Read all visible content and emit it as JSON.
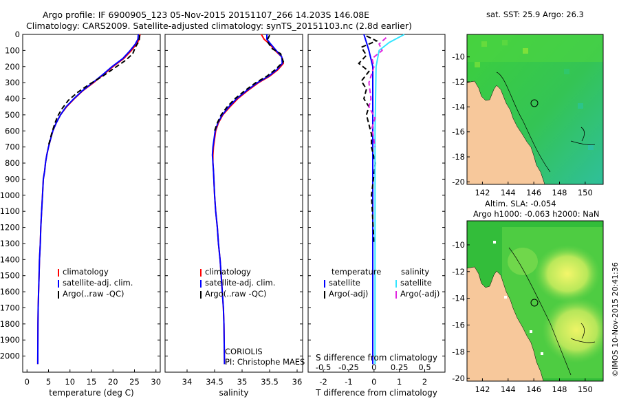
{
  "header": {
    "line1": "Argo profile: IF 6900905_123 05-Nov-2015 20151107_266 14.203S 146.08E",
    "line2": "Climatology: CARS2009. Satellite-adjusted climatology: synTS_20151103.nc (2.8d earlier)"
  },
  "map_top": {
    "title": "sat. SST: 25.9 Argo: 26.3",
    "xticks": [
      "142",
      "144",
      "146",
      "148",
      "150"
    ],
    "yticks": [
      "-10",
      "-12",
      "-14",
      "-16",
      "-18",
      "-20"
    ],
    "xlim": [
      140.8,
      151.4
    ],
    "ylim": [
      -20.2,
      -8.2
    ],
    "marker": {
      "lon": 146.08,
      "lat": -14.203
    }
  },
  "map_bottom": {
    "title1": "Altim. SLA: -0.054",
    "title2": "Argo h1000: -0.063 h2000: NaN",
    "xticks": [
      "142",
      "144",
      "146",
      "148",
      "150"
    ],
    "yticks": [
      "-10",
      "-12",
      "-14",
      "-16",
      "-18",
      "-20"
    ],
    "xlim": [
      140.8,
      151.4
    ],
    "ylim": [
      -20.2,
      -8.2
    ],
    "marker": {
      "lon": 146.08,
      "lat": -14.203
    }
  },
  "watermark": "©IMOS 10-Nov-2015 20:41:36",
  "colors": {
    "climatology": "#ff0000",
    "satellite": "#0000ff",
    "argo": "#000000",
    "sal_satellite": "#33e5ff",
    "sal_argo": "#e026e0",
    "land": "#f7c89b",
    "ocean": "#39c039"
  },
  "chart_data": [
    {
      "type": "line",
      "xlabel": "temperature (deg C)",
      "ylim": [
        2100,
        0
      ],
      "xlim": [
        -1,
        31
      ],
      "xticks": [
        "0",
        "5",
        "10",
        "15",
        "20",
        "25",
        "30"
      ],
      "yticks": [
        "0",
        "100",
        "200",
        "300",
        "400",
        "500",
        "600",
        "700",
        "800",
        "900",
        "1000",
        "1100",
        "1200",
        "1300",
        "1400",
        "1500",
        "1600",
        "1700",
        "1800",
        "1900",
        "2000"
      ],
      "legend": [
        "climatology",
        "satellite-adj. clim.",
        "Argo(..raw -QC)"
      ],
      "series": [
        {
          "name": "climatology",
          "x": [
            26.3,
            26.1,
            25.5,
            24.3,
            22.5,
            20,
            17.8,
            15.5,
            13,
            11,
            9.2,
            7.8,
            6.8,
            6,
            5.5,
            5,
            4.6,
            4.3,
            4.1,
            3.8,
            3.6,
            3.4,
            3.2,
            3.1,
            2.9,
            2.8,
            2.7,
            2.6,
            2.55,
            2.5
          ],
          "y": [
            0,
            30,
            60,
            100,
            150,
            200,
            250,
            300,
            350,
            400,
            450,
            500,
            550,
            600,
            650,
            700,
            750,
            800,
            850,
            900,
            1000,
            1100,
            1200,
            1300,
            1400,
            1500,
            1600,
            1700,
            1800,
            2050
          ]
        },
        {
          "name": "satellite-adj. clim.",
          "x": [
            25.9,
            25.8,
            25.2,
            24,
            22.3,
            19.8,
            17.6,
            15.3,
            12.9,
            10.9,
            9.1,
            7.8,
            6.8,
            6,
            5.5,
            5,
            4.6,
            4.3,
            4.1,
            3.8,
            3.6,
            3.4,
            3.2,
            3.1,
            2.9,
            2.8,
            2.7,
            2.6,
            2.55,
            2.5
          ],
          "y": [
            0,
            30,
            60,
            100,
            150,
            200,
            250,
            300,
            350,
            400,
            450,
            500,
            550,
            600,
            650,
            700,
            750,
            800,
            850,
            900,
            1000,
            1100,
            1200,
            1300,
            1400,
            1500,
            1600,
            1700,
            1800,
            2050
          ]
        },
        {
          "name": "Argo(..raw -QC)",
          "x": [
            26.2,
            26.1,
            25.2,
            24.6,
            23,
            20.3,
            17.6,
            14.5,
            11.8,
            9.6,
            8.2,
            7.1,
            6.4,
            5.8,
            5.3,
            4.9
          ],
          "y": [
            5,
            40,
            80,
            120,
            160,
            210,
            260,
            310,
            360,
            410,
            460,
            510,
            560,
            610,
            660,
            700
          ]
        }
      ]
    },
    {
      "type": "line",
      "xlabel": "salinity",
      "ylim": [
        2100,
        0
      ],
      "xlim": [
        33.6,
        36.1
      ],
      "xticks": [
        "34",
        "34.5",
        "35",
        "35.5",
        "36"
      ],
      "legend": [
        "climatology",
        "satellite-adj. clim.",
        "Argo(..raw -QC)"
      ],
      "annotation": [
        "CORIOLIS",
        "PI: Christophe MAES"
      ],
      "series": [
        {
          "name": "climatology",
          "x": [
            35.35,
            35.4,
            35.5,
            35.6,
            35.72,
            35.75,
            35.65,
            35.5,
            35.3,
            35.1,
            34.92,
            34.78,
            34.65,
            34.57,
            34.52,
            34.5,
            34.48,
            34.47,
            34.47,
            34.48,
            34.5,
            34.52,
            34.55,
            34.57,
            34.6,
            34.62,
            34.64,
            34.66,
            34.67,
            34.68
          ],
          "y": [
            0,
            30,
            60,
            100,
            140,
            180,
            220,
            260,
            300,
            350,
            400,
            450,
            500,
            550,
            600,
            650,
            700,
            750,
            800,
            850,
            1000,
            1100,
            1200,
            1300,
            1400,
            1500,
            1600,
            1700,
            1800,
            2050
          ]
        },
        {
          "name": "satellite-adj. clim.",
          "x": [
            35.45,
            35.45,
            35.52,
            35.62,
            35.72,
            35.73,
            35.63,
            35.48,
            35.28,
            35.08,
            34.9,
            34.76,
            34.64,
            34.56,
            34.51,
            34.49,
            34.47,
            34.46,
            34.47,
            34.48,
            34.5,
            34.52,
            34.55,
            34.57,
            34.6,
            34.62,
            34.64,
            34.66,
            34.67,
            34.68
          ],
          "y": [
            0,
            30,
            60,
            100,
            140,
            180,
            220,
            260,
            300,
            350,
            400,
            450,
            500,
            550,
            600,
            650,
            700,
            750,
            800,
            850,
            1000,
            1100,
            1200,
            1300,
            1400,
            1500,
            1600,
            1700,
            1800,
            2050
          ]
        },
        {
          "name": "Argo(..raw -QC)",
          "x": [
            35.5,
            35.45,
            35.55,
            35.7,
            35.75,
            35.6,
            35.45,
            35.25,
            35.05,
            34.87,
            34.73,
            34.62,
            34.55,
            34.5
          ],
          "y": [
            5,
            40,
            90,
            120,
            170,
            220,
            260,
            300,
            350,
            400,
            450,
            500,
            550,
            600
          ]
        }
      ]
    },
    {
      "type": "line",
      "xlabel_bottom": "T difference from climatology",
      "xlabel_top": "S difference from climatology",
      "ylim": [
        2100,
        0
      ],
      "xlim": [
        -2.6,
        2.8
      ],
      "xticks": [
        "-2",
        "-1",
        "0",
        "1",
        "2"
      ],
      "xticks_top": [
        "-0.5",
        "-0.25",
        "0",
        "0.25",
        "0.5"
      ],
      "legend_headers": [
        "temperature",
        "salinity"
      ],
      "legend": [
        "satellite",
        "Argo(-adj)",
        "satellite",
        "Argo(-adj)"
      ],
      "series": [
        {
          "name": "satellite",
          "x": [
            -0.4,
            -0.3,
            -0.2,
            -0.05,
            -0.05,
            -0.05,
            -0.05,
            -0.05
          ],
          "y": [
            0,
            50,
            100,
            200,
            600,
            1000,
            1500,
            2050
          ]
        },
        {
          "name": "Argo(-adj)",
          "x": [
            -0.3,
            0.1,
            -0.5,
            -0.3,
            -0.6,
            -0.2,
            -0.5,
            -0.3,
            -0.4,
            -0.2,
            -0.3,
            -0.2,
            -0.1,
            -0.1,
            0.05,
            -0.1,
            0
          ],
          "y": [
            10,
            40,
            80,
            130,
            180,
            230,
            290,
            340,
            400,
            450,
            500,
            560,
            620,
            700,
            800,
            1000,
            1300
          ]
        },
        {
          "name": "satellite",
          "x": [
            0.3,
            0.15,
            0.05,
            0.02,
            0.01,
            0.01,
            0.01,
            0.01
          ],
          "y": [
            0,
            50,
            100,
            200,
            600,
            1000,
            1500,
            2050
          ]
        },
        {
          "name": "Argo(-adj)",
          "x": [
            0.12,
            0.05,
            0.08,
            -0.02,
            0,
            -0.05,
            -0.03,
            -0.05,
            0.01,
            -0.02,
            0.01
          ],
          "y": [
            20,
            60,
            100,
            150,
            200,
            300,
            400,
            450,
            520,
            580,
            700
          ]
        }
      ]
    }
  ]
}
